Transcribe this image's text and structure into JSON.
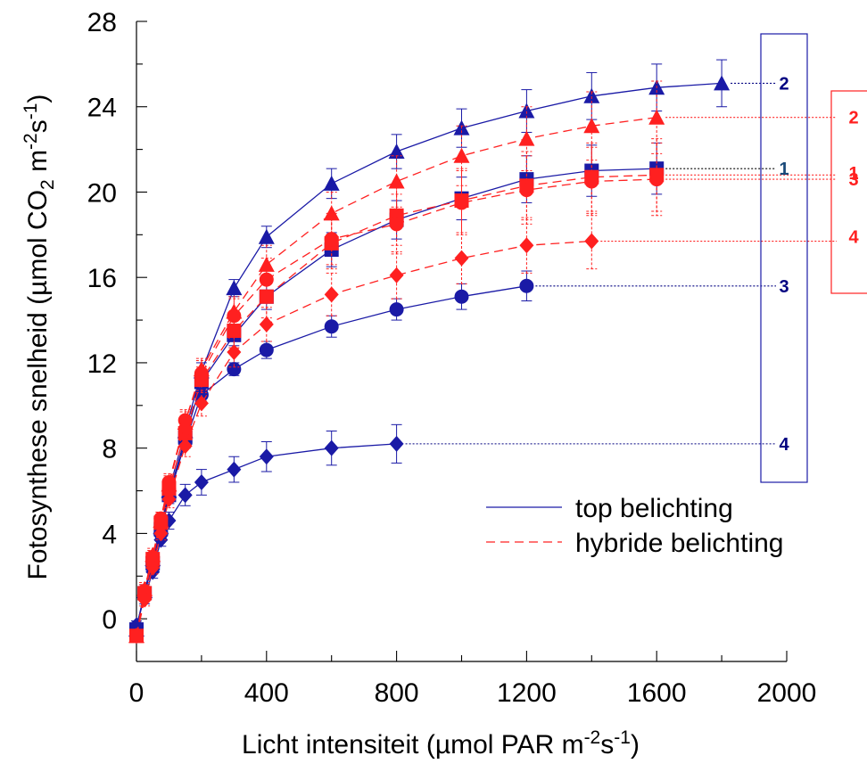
{
  "chart_data": {
    "type": "line",
    "title": "",
    "xlabel": "Licht intensiteit (µmol PAR m-2s-1)",
    "ylabel": "Fotosynthese snelheid (µmol CO2 m-2s-1)",
    "xlabel_parts": {
      "main": "Licht intensiteit (µmol PAR m",
      "exp1": "-2",
      "mid": "s",
      "exp2": "-1",
      "end": ")"
    },
    "ylabel_parts": {
      "main": "Fotosynthese snelheid (µmol CO",
      "sub": "2",
      "mid": " m",
      "exp1": "-2",
      "mid2": "s",
      "exp2": "-1",
      "end": ")"
    },
    "xlim": [
      0,
      2000
    ],
    "ylim": [
      -2,
      28
    ],
    "xticks": [
      "0",
      "400",
      "800",
      "1200",
      "1600",
      "2000"
    ],
    "yticks": [
      "0",
      "4",
      "8",
      "12",
      "16",
      "20",
      "24",
      "28"
    ],
    "xtick_values": [
      0,
      400,
      800,
      1200,
      1600,
      2000
    ],
    "ytick_values": [
      0,
      4,
      8,
      12,
      16,
      20,
      24,
      28
    ],
    "grid": false,
    "legend": {
      "placement": "lower-right",
      "entries": [
        {
          "label": "top belichting",
          "color": "#1a1aa6",
          "dash": "solid"
        },
        {
          "label": "hybride belichting",
          "color": "#ff2020",
          "dash": "dashed"
        }
      ]
    },
    "colors": {
      "top": "#1a1aa6",
      "hybrid": "#ff2020",
      "label_blue": "#000080",
      "label_teal": "#1a4a7a"
    },
    "series": [
      {
        "group": "top",
        "marker": "triangle",
        "tag": "2",
        "tag_color": "#000080",
        "tag_y": 25.1,
        "x": [
          0,
          25,
          50,
          75,
          100,
          150,
          200,
          300,
          400,
          600,
          800,
          1000,
          1200,
          1400,
          1600,
          1800
        ],
        "y": [
          -0.5,
          1.3,
          2.8,
          4.3,
          6.0,
          8.8,
          11.6,
          15.5,
          17.9,
          20.4,
          21.9,
          23.0,
          23.8,
          24.5,
          24.9,
          25.1
        ],
        "err": [
          0.2,
          0.3,
          0.3,
          0.3,
          0.4,
          0.4,
          0.4,
          0.4,
          0.5,
          0.7,
          0.8,
          0.9,
          1.0,
          1.1,
          1.1,
          1.1
        ]
      },
      {
        "group": "top",
        "marker": "square",
        "tag": "1",
        "tag_color": "#1a4a7a",
        "tag_y": 21.1,
        "x": [
          0,
          25,
          50,
          75,
          100,
          150,
          200,
          300,
          400,
          600,
          800,
          1000,
          1200,
          1400,
          1600
        ],
        "y": [
          -0.5,
          1.2,
          2.6,
          4.2,
          5.8,
          8.5,
          11.1,
          13.3,
          15.1,
          17.3,
          18.7,
          19.7,
          20.6,
          21.0,
          21.1
        ],
        "err": [
          0.2,
          0.3,
          0.3,
          0.3,
          0.3,
          0.4,
          0.4,
          0.5,
          0.6,
          0.8,
          0.9,
          1.0,
          1.1,
          1.2,
          1.2
        ]
      },
      {
        "group": "top",
        "marker": "circle",
        "tag": "3",
        "tag_color": "#000080",
        "tag_y": 15.6,
        "x": [
          0,
          25,
          50,
          75,
          100,
          150,
          200,
          300,
          400,
          600,
          800,
          1000,
          1200
        ],
        "y": [
          -0.4,
          1.2,
          2.6,
          4.0,
          5.7,
          8.3,
          10.5,
          11.7,
          12.6,
          13.7,
          14.5,
          15.1,
          15.6
        ],
        "err": [
          0.2,
          0.3,
          0.3,
          0.3,
          0.3,
          0.3,
          0.3,
          0.3,
          0.4,
          0.5,
          0.5,
          0.6,
          0.7
        ]
      },
      {
        "group": "top",
        "marker": "diamond",
        "tag": "4",
        "tag_color": "#000080",
        "tag_y": 8.2,
        "x": [
          0,
          25,
          50,
          75,
          100,
          150,
          200,
          300,
          400,
          600,
          800
        ],
        "y": [
          -0.3,
          1.0,
          2.2,
          3.7,
          4.6,
          5.8,
          6.4,
          7.0,
          7.6,
          8.0,
          8.2
        ],
        "err": [
          0.2,
          0.3,
          0.3,
          0.3,
          0.4,
          0.5,
          0.6,
          0.6,
          0.7,
          0.8,
          0.9
        ]
      },
      {
        "group": "hybrid",
        "marker": "triangle",
        "tag": "2",
        "tag_color": "#ff2020",
        "tag_y": 23.5,
        "x": [
          0,
          25,
          50,
          75,
          100,
          150,
          200,
          300,
          400,
          600,
          800,
          1000,
          1200,
          1400,
          1600
        ],
        "y": [
          -0.8,
          1.4,
          3.0,
          4.6,
          6.3,
          9.2,
          11.7,
          14.4,
          16.6,
          19.0,
          20.5,
          21.7,
          22.5,
          23.1,
          23.5
        ],
        "err": [
          0.2,
          0.3,
          0.3,
          0.3,
          0.4,
          0.5,
          0.5,
          0.7,
          0.9,
          1.0,
          1.2,
          1.4,
          1.5,
          1.6,
          1.7
        ]
      },
      {
        "group": "hybrid",
        "marker": "square",
        "tag": "1",
        "tag_color": "#ff2020",
        "tag_y": 20.9,
        "x": [
          0,
          25,
          50,
          75,
          100,
          150,
          200,
          300,
          400,
          600,
          800,
          1000,
          1200,
          1400,
          1600
        ],
        "y": [
          -0.8,
          1.2,
          2.8,
          4.5,
          6.1,
          8.7,
          11.2,
          13.5,
          15.1,
          17.6,
          18.9,
          19.6,
          20.3,
          20.7,
          20.8
        ],
        "err": [
          0.2,
          0.3,
          0.3,
          0.3,
          0.4,
          0.5,
          0.6,
          0.8,
          1.0,
          1.2,
          1.4,
          1.5,
          1.6,
          1.6,
          1.7
        ]
      },
      {
        "group": "hybrid",
        "marker": "circle",
        "tag": "3",
        "tag_color": "#ff2020",
        "tag_y": 20.6,
        "x": [
          0,
          25,
          50,
          75,
          100,
          150,
          200,
          300,
          400,
          600,
          800,
          1000,
          1200,
          1400,
          1600
        ],
        "y": [
          -0.8,
          1.3,
          2.9,
          4.7,
          6.4,
          9.3,
          11.5,
          14.2,
          15.9,
          17.8,
          18.5,
          19.5,
          20.1,
          20.5,
          20.6
        ],
        "err": [
          0.2,
          0.3,
          0.3,
          0.3,
          0.4,
          0.5,
          0.6,
          0.8,
          1.0,
          1.2,
          1.4,
          1.5,
          1.6,
          1.6,
          1.7
        ]
      },
      {
        "group": "hybrid",
        "marker": "diamond",
        "tag": "4",
        "tag_color": "#ff2020",
        "tag_y": 17.9,
        "x": [
          0,
          25,
          50,
          75,
          100,
          150,
          200,
          300,
          400,
          600,
          800,
          1000,
          1200,
          1400
        ],
        "y": [
          -0.8,
          0.9,
          2.4,
          4.0,
          5.6,
          8.1,
          10.1,
          12.5,
          13.8,
          15.2,
          16.1,
          16.9,
          17.5,
          17.7
        ],
        "err": [
          0.2,
          0.3,
          0.3,
          0.3,
          0.4,
          0.5,
          0.6,
          0.7,
          0.8,
          1.0,
          1.1,
          1.2,
          1.3,
          1.3
        ]
      }
    ]
  }
}
